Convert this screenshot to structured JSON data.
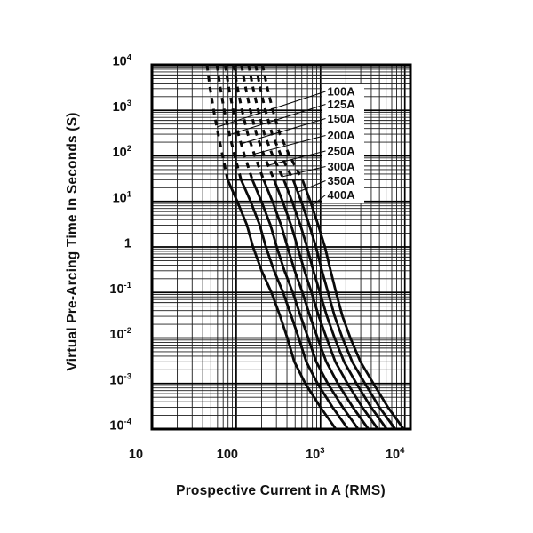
{
  "chart_data": {
    "type": "line",
    "title": "",
    "xlabel": "Prospective Current in A (RMS)",
    "ylabel": "Virtual Pre-Arcing Time In Seconds (S)",
    "x_axis": {
      "scale": "log",
      "unit": "A (RMS)",
      "min": 10,
      "max": 12000,
      "ticks": [
        {
          "value": 10,
          "base": "10",
          "exp": ""
        },
        {
          "value": 100,
          "base": "100",
          "exp": ""
        },
        {
          "value": 1000,
          "base": "10",
          "exp": "3"
        },
        {
          "value": 10000,
          "base": "10",
          "exp": "4"
        }
      ],
      "grid": "log-minor-on"
    },
    "y_axis": {
      "scale": "log",
      "unit": "s",
      "min": 0.0001,
      "max": 10000,
      "ticks": [
        {
          "value": 10000,
          "base": "10",
          "exp": "4"
        },
        {
          "value": 1000,
          "base": "10",
          "exp": "3"
        },
        {
          "value": 100,
          "base": "10",
          "exp": "2"
        },
        {
          "value": 10,
          "base": "10",
          "exp": "1"
        },
        {
          "value": 1,
          "base": "1",
          "exp": ""
        },
        {
          "value": 0.1,
          "base": "10",
          "exp": "-1"
        },
        {
          "value": 0.01,
          "base": "10",
          "exp": "-2"
        },
        {
          "value": 0.001,
          "base": "10",
          "exp": "-3"
        },
        {
          "value": 0.0001,
          "base": "10",
          "exp": "-4"
        }
      ],
      "grid": "log-minor-on"
    },
    "times_s": [
      10000,
      3000,
      1000,
      300,
      100,
      30,
      10,
      3,
      1,
      0.3,
      0.1,
      0.03,
      0.01,
      0.003,
      0.001,
      0.0003,
      0.0001
    ],
    "dashed_above_time_s": 30,
    "transition_line": {
      "time_s": 30,
      "from_amps": 79,
      "to_amps": 610
    },
    "series": [
      {
        "name": "100A",
        "rating_amps": 100,
        "amps": [
          45,
          49,
          54,
          61,
          69,
          79,
          103,
          134,
          158,
          200,
          262,
          332,
          405,
          490,
          660,
          1000,
          1520
        ]
      },
      {
        "name": "125A",
        "rating_amps": 125,
        "amps": [
          59,
          65,
          72,
          83,
          96,
          114,
          148,
          190,
          225,
          281,
          360,
          451,
          552,
          678,
          923,
          1390,
          2120
        ]
      },
      {
        "name": "150A",
        "rating_amps": 150,
        "amps": [
          74,
          82,
          92,
          106,
          126,
          155,
          199,
          255,
          302,
          373,
          469,
          582,
          714,
          889,
          1220,
          1840,
          2800
        ]
      },
      {
        "name": "200A",
        "rating_amps": 200,
        "amps": [
          93,
          104,
          117,
          137,
          166,
          211,
          269,
          341,
          406,
          495,
          611,
          751,
          924,
          1170,
          1610,
          2420,
          3700
        ]
      },
      {
        "name": "250A",
        "rating_amps": 250,
        "amps": [
          115,
          130,
          147,
          174,
          215,
          281,
          356,
          448,
          535,
          644,
          782,
          953,
          1180,
          1500,
          2090,
          3130,
          4800
        ]
      },
      {
        "name": "300A",
        "rating_amps": 300,
        "amps": [
          140,
          159,
          182,
          216,
          272,
          366,
          461,
          578,
          691,
          824,
          984,
          1190,
          1470,
          1900,
          2670,
          3980,
          6100
        ]
      },
      {
        "name": "350A",
        "rating_amps": 350,
        "amps": [
          170,
          193,
          222,
          267,
          342,
          473,
          592,
          737,
          884,
          1040,
          1230,
          1470,
          1820,
          2380,
          3370,
          5000,
          7690
        ]
      },
      {
        "name": "400A",
        "rating_amps": 400,
        "amps": [
          205,
          235,
          272,
          330,
          430,
          610,
          760,
          940,
          1130,
          1320,
          1530,
          1820,
          2260,
          2980,
          4250,
          6300,
          9700
        ]
      }
    ],
    "leader_attach_times_s": [
      427,
      292,
      185,
      110,
      62,
      35,
      16,
      8
    ],
    "legend_position": "inside-right-top"
  },
  "colors": {
    "background": "#ffffff",
    "curve": "#0a0a0a",
    "grid_minor": "#1c1c1c",
    "grid_major": "#000000",
    "border": "#000000",
    "text": "#111111",
    "label_box": "#ffffff"
  }
}
